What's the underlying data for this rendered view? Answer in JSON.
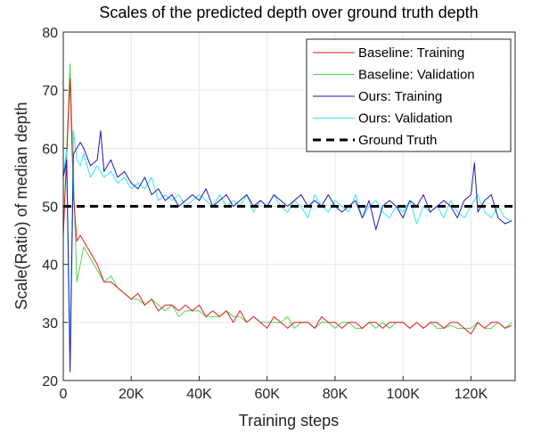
{
  "chart_data": {
    "type": "line",
    "title": "Scales of the predicted depth over ground truth depth",
    "xlabel": "Training steps",
    "ylabel": "Scale(Ratio) of median depth",
    "xlim": [
      0,
      133000
    ],
    "ylim": [
      20,
      80
    ],
    "xticks": [
      {
        "value": 0,
        "label": "0"
      },
      {
        "value": 20000,
        "label": "20K"
      },
      {
        "value": 40000,
        "label": "40K"
      },
      {
        "value": 60000,
        "label": "60K"
      },
      {
        "value": 80000,
        "label": "80K"
      },
      {
        "value": 100000,
        "label": "100K"
      },
      {
        "value": 120000,
        "label": "120K"
      }
    ],
    "yticks": [
      {
        "value": 20,
        "label": "20"
      },
      {
        "value": 30,
        "label": "30"
      },
      {
        "value": 40,
        "label": "40"
      },
      {
        "value": 50,
        "label": "50"
      },
      {
        "value": 60,
        "label": "60"
      },
      {
        "value": 70,
        "label": "70"
      },
      {
        "value": 80,
        "label": "80"
      }
    ],
    "grid": true,
    "legend_position": "top-right",
    "series": [
      {
        "name": "Baseline: Training",
        "color": "#e41a1c",
        "style": "solid",
        "x": [
          0,
          2000,
          3000,
          4000,
          5000,
          6000,
          8000,
          10000,
          12000,
          14000,
          16000,
          18000,
          20000,
          22000,
          24000,
          26000,
          28000,
          30000,
          32000,
          34000,
          36000,
          38000,
          40000,
          42000,
          44000,
          46000,
          48000,
          50000,
          52000,
          54000,
          56000,
          58000,
          60000,
          62000,
          64000,
          66000,
          68000,
          70000,
          72000,
          74000,
          76000,
          78000,
          80000,
          82000,
          84000,
          86000,
          88000,
          90000,
          92000,
          94000,
          96000,
          98000,
          100000,
          102000,
          104000,
          106000,
          108000,
          110000,
          112000,
          114000,
          116000,
          118000,
          120000,
          122000,
          124000,
          126000,
          128000,
          130000,
          132000
        ],
        "y": [
          45,
          72,
          52,
          44,
          45,
          44,
          42,
          40,
          37,
          37,
          36,
          35,
          34,
          35,
          33,
          34,
          32,
          33,
          33,
          32,
          33,
          32,
          33,
          31,
          32,
          31,
          32,
          30,
          32,
          30,
          31,
          30,
          29,
          31,
          30,
          29,
          30,
          30,
          30,
          29,
          31,
          30,
          30,
          29,
          30,
          30,
          29,
          30,
          30,
          29,
          30,
          30,
          30,
          29,
          30,
          29,
          30,
          30,
          29,
          30,
          30,
          29,
          28,
          30,
          29,
          30,
          30,
          29,
          29.5
        ]
      },
      {
        "name": "Baseline: Validation",
        "color": "#4dd64d",
        "style": "solid",
        "x": [
          0,
          2000,
          3000,
          4000,
          5000,
          6000,
          8000,
          10000,
          12000,
          14000,
          16000,
          18000,
          20000,
          22000,
          24000,
          26000,
          28000,
          30000,
          32000,
          34000,
          36000,
          38000,
          40000,
          42000,
          44000,
          46000,
          48000,
          50000,
          52000,
          54000,
          56000,
          58000,
          60000,
          62000,
          64000,
          66000,
          68000,
          70000,
          72000,
          74000,
          76000,
          78000,
          80000,
          82000,
          84000,
          86000,
          88000,
          90000,
          92000,
          94000,
          96000,
          98000,
          100000,
          102000,
          104000,
          106000,
          108000,
          110000,
          112000,
          114000,
          116000,
          118000,
          120000,
          122000,
          124000,
          126000,
          128000,
          130000,
          132000
        ],
        "y": [
          45,
          74.5,
          55,
          37,
          40,
          43,
          41,
          39,
          37,
          38,
          36,
          35,
          34,
          34,
          33,
          34,
          33,
          32,
          33,
          31,
          32,
          32,
          32,
          31,
          31,
          31,
          32,
          31,
          31,
          30,
          31,
          30,
          30,
          30,
          30,
          31,
          29,
          30,
          30,
          29,
          30,
          30,
          29,
          30,
          30,
          29,
          29,
          30,
          29,
          30,
          29,
          30,
          30,
          29,
          30,
          29,
          30,
          29,
          29,
          29.5,
          29,
          29,
          29,
          30,
          29,
          29,
          30,
          29,
          30
        ]
      },
      {
        "name": "Ours: Training",
        "color": "#1a1ab8",
        "style": "solid",
        "x": [
          0,
          1000,
          2000,
          3000,
          4000,
          5000,
          6000,
          8000,
          10000,
          11000,
          12000,
          14000,
          16000,
          18000,
          20000,
          22000,
          24000,
          26000,
          28000,
          30000,
          32000,
          34000,
          36000,
          38000,
          40000,
          42000,
          44000,
          46000,
          48000,
          50000,
          52000,
          54000,
          56000,
          58000,
          60000,
          62000,
          64000,
          66000,
          68000,
          70000,
          72000,
          74000,
          76000,
          78000,
          80000,
          82000,
          84000,
          86000,
          88000,
          90000,
          92000,
          94000,
          96000,
          98000,
          100000,
          102000,
          104000,
          106000,
          108000,
          110000,
          112000,
          114000,
          116000,
          118000,
          120000,
          121000,
          122000,
          124000,
          126000,
          128000,
          130000,
          132000
        ],
        "y": [
          55,
          58,
          21.5,
          59,
          60,
          61,
          60,
          57,
          58,
          63,
          56,
          58,
          55,
          56,
          54,
          53,
          55,
          52,
          53,
          51,
          52,
          50,
          51,
          52,
          51,
          53,
          50,
          51,
          52,
          50,
          51,
          52,
          50,
          51,
          50,
          52,
          51,
          50,
          51,
          52,
          50,
          51,
          50,
          52,
          50,
          49,
          50,
          51,
          48,
          51,
          46,
          50,
          51,
          50,
          48,
          51,
          50,
          52,
          49,
          50,
          51,
          50,
          48,
          51,
          52,
          57.5,
          49,
          51,
          52,
          48,
          47,
          47.5
        ]
      },
      {
        "name": "Ours: Validation",
        "color": "#33e5f0",
        "style": "solid",
        "x": [
          0,
          1000,
          2000,
          3000,
          4000,
          5000,
          6000,
          8000,
          10000,
          12000,
          14000,
          16000,
          18000,
          20000,
          22000,
          24000,
          26000,
          28000,
          30000,
          32000,
          34000,
          36000,
          38000,
          40000,
          42000,
          44000,
          46000,
          48000,
          50000,
          52000,
          54000,
          56000,
          58000,
          60000,
          62000,
          64000,
          66000,
          68000,
          70000,
          72000,
          74000,
          76000,
          78000,
          80000,
          82000,
          84000,
          86000,
          88000,
          90000,
          92000,
          94000,
          96000,
          98000,
          100000,
          102000,
          104000,
          106000,
          108000,
          110000,
          112000,
          114000,
          116000,
          118000,
          120000,
          122000,
          124000,
          126000,
          128000,
          130000,
          132000
        ],
        "y": [
          55,
          60,
          24,
          63,
          58,
          57,
          59,
          55,
          57,
          55,
          56,
          54,
          55,
          53,
          54,
          53,
          55,
          51,
          52,
          51,
          52,
          50,
          51,
          52,
          51,
          50,
          52,
          50,
          51,
          50,
          52,
          49,
          51,
          50,
          52,
          50,
          49,
          51,
          50,
          48,
          52,
          50,
          49,
          51,
          50,
          49,
          52,
          48,
          50,
          51,
          49,
          48,
          50,
          49,
          51,
          47,
          50,
          49,
          50,
          48,
          51,
          49,
          48,
          50,
          52,
          49,
          48,
          50,
          48,
          47.5
        ]
      },
      {
        "name": "Ground Truth",
        "color": "#000000",
        "style": "dashed",
        "x": [
          0,
          133000
        ],
        "y": [
          50,
          50
        ]
      }
    ]
  }
}
